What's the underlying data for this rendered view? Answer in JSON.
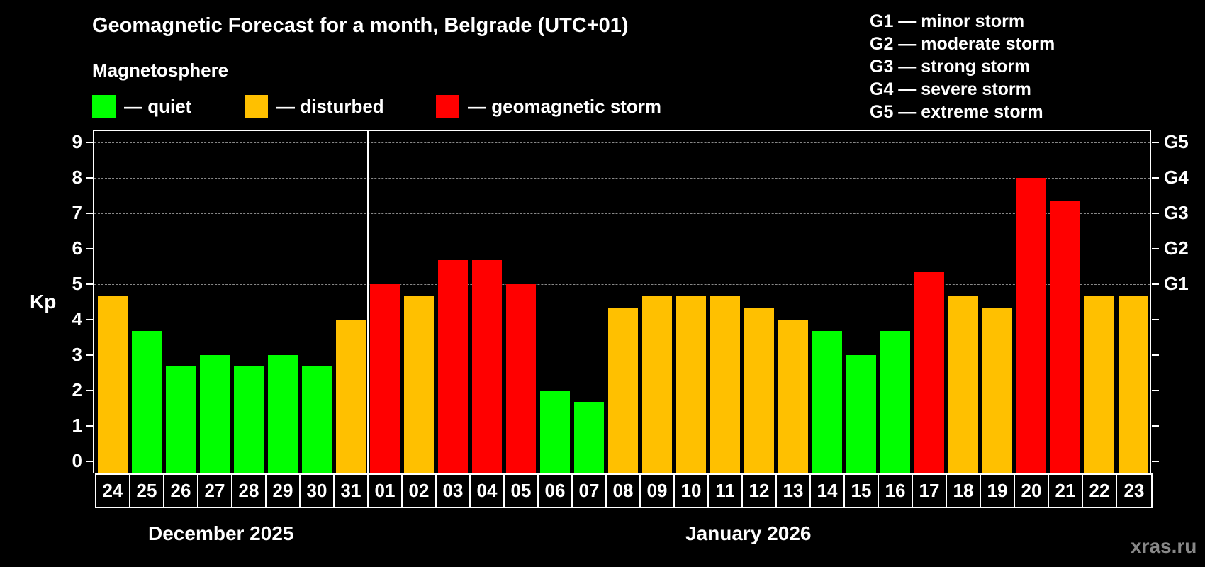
{
  "header": {
    "title": "Geomagnetic Forecast for a month, Belgrade (UTC+01)",
    "subtitle": "Magnetosphere"
  },
  "legend": [
    {
      "label": "— quiet",
      "color": "#00ff00"
    },
    {
      "label": "— disturbed",
      "color": "#ffc000"
    },
    {
      "label": "— geomagnetic storm",
      "color": "#ff0000"
    }
  ],
  "storm_scale": [
    "G1 — minor storm",
    "G2 — moderate storm",
    "G3 — strong storm",
    "G4 — severe storm",
    "G5 — extreme storm"
  ],
  "axes": {
    "y_label": "Kp",
    "y_ticks": [
      "0",
      "1",
      "2",
      "3",
      "4",
      "5",
      "6",
      "7",
      "8",
      "9"
    ],
    "g_ticks": [
      {
        "label": "G1",
        "kp": 5
      },
      {
        "label": "G2",
        "kp": 6
      },
      {
        "label": "G3",
        "kp": 7
      },
      {
        "label": "G4",
        "kp": 8
      },
      {
        "label": "G5",
        "kp": 9
      }
    ]
  },
  "months": [
    {
      "label": "December 2025"
    },
    {
      "label": "January 2026"
    }
  ],
  "watermark": "xras.ru",
  "colors": {
    "quiet": "#00ff00",
    "disturbed": "#ffc000",
    "storm": "#ff0000",
    "background": "#000000",
    "grid": "#888888"
  },
  "chart_data": {
    "type": "bar",
    "title": "Geomagnetic Forecast for a month, Belgrade (UTC+01)",
    "subtitle": "Magnetosphere",
    "xlabel": "",
    "ylabel": "Kp",
    "ylim": [
      0,
      9
    ],
    "grid": true,
    "legend_position": "top",
    "categories": [
      "24",
      "25",
      "26",
      "27",
      "28",
      "29",
      "30",
      "31",
      "01",
      "02",
      "03",
      "04",
      "05",
      "06",
      "07",
      "08",
      "09",
      "10",
      "11",
      "12",
      "13",
      "14",
      "15",
      "16",
      "17",
      "18",
      "19",
      "20",
      "21",
      "22",
      "23"
    ],
    "month_groups": [
      {
        "label": "December 2025",
        "days": [
          "24",
          "25",
          "26",
          "27",
          "28",
          "29",
          "30",
          "31"
        ]
      },
      {
        "label": "January 2026",
        "days": [
          "01",
          "02",
          "03",
          "04",
          "05",
          "06",
          "07",
          "08",
          "09",
          "10",
          "11",
          "12",
          "13",
          "14",
          "15",
          "16",
          "17",
          "18",
          "19",
          "20",
          "21",
          "22",
          "23"
        ]
      }
    ],
    "values": [
      4.67,
      3.67,
      2.67,
      3.0,
      2.67,
      3.0,
      2.67,
      4.0,
      5.0,
      4.67,
      5.67,
      5.67,
      5.0,
      2.0,
      1.67,
      4.33,
      4.67,
      4.67,
      4.67,
      4.33,
      4.0,
      3.67,
      3.0,
      3.67,
      5.33,
      4.67,
      4.33,
      8.0,
      7.33,
      4.67,
      4.67
    ],
    "status": [
      "disturbed",
      "quiet",
      "quiet",
      "quiet",
      "quiet",
      "quiet",
      "quiet",
      "disturbed",
      "storm",
      "disturbed",
      "storm",
      "storm",
      "storm",
      "quiet",
      "quiet",
      "disturbed",
      "disturbed",
      "disturbed",
      "disturbed",
      "disturbed",
      "disturbed",
      "quiet",
      "quiet",
      "quiet",
      "storm",
      "disturbed",
      "disturbed",
      "storm",
      "storm",
      "disturbed",
      "disturbed"
    ],
    "secondary_axis": {
      "G1": 5,
      "G2": 6,
      "G3": 7,
      "G4": 8,
      "G5": 9
    }
  }
}
